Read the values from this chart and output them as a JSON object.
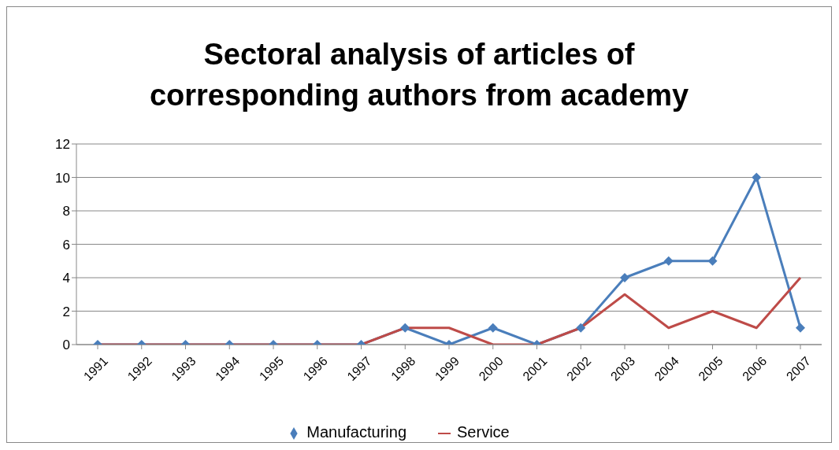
{
  "chart_data": {
    "type": "line",
    "title": "Sectoral analysis of articles of corresponding authors from academy",
    "categories": [
      "1991",
      "1992",
      "1993",
      "1994",
      "1995",
      "1996",
      "1997",
      "1998",
      "1999",
      "2000",
      "2001",
      "2002",
      "2003",
      "2004",
      "2005",
      "2006",
      "2007"
    ],
    "series": [
      {
        "name": "Manufacturing",
        "color": "#4a7ebb",
        "marker": "diamond",
        "values": [
          0,
          0,
          0,
          0,
          0,
          0,
          0,
          1,
          0,
          1,
          0,
          1,
          4,
          5,
          5,
          10,
          1
        ]
      },
      {
        "name": "Service",
        "color": "#be4b48",
        "marker": "none",
        "values": [
          0,
          0,
          0,
          0,
          0,
          0,
          0,
          1,
          1,
          0,
          0,
          1,
          3,
          1,
          2,
          1,
          4
        ]
      }
    ],
    "ylim": [
      0,
      12
    ],
    "yticks": [
      0,
      2,
      4,
      6,
      8,
      10,
      12
    ],
    "grid": "y",
    "legend": "bottom",
    "line_style": "solid"
  }
}
